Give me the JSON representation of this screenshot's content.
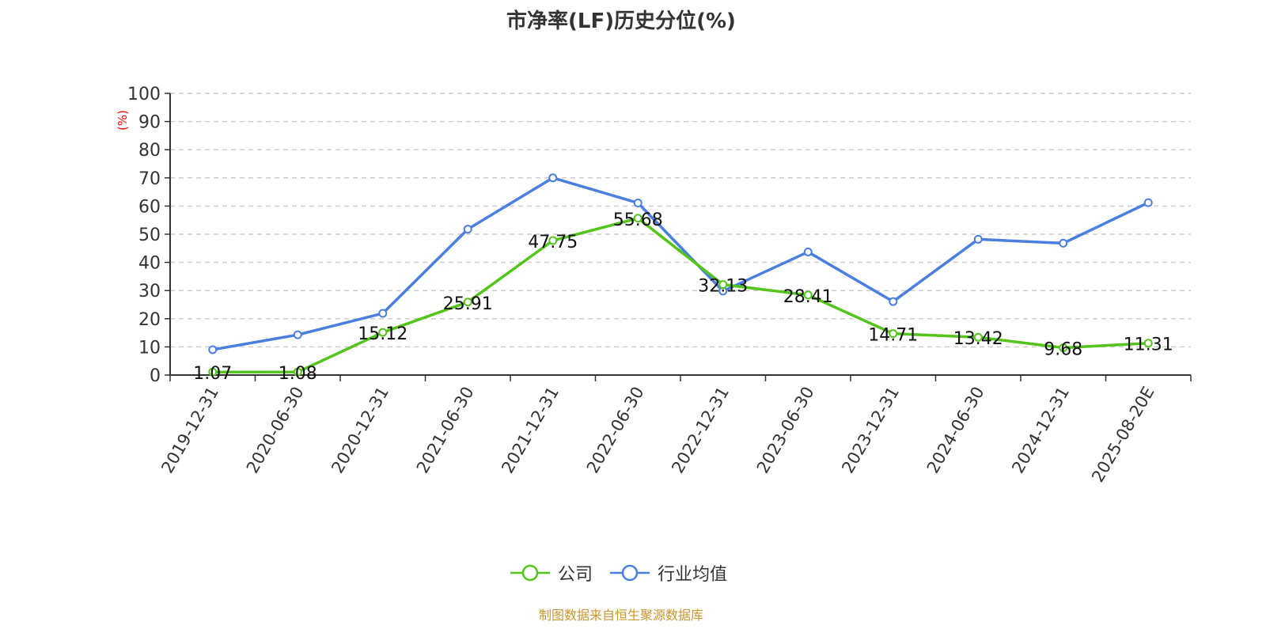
{
  "chart_data": {
    "type": "line",
    "title": "市净率(LF)历史分位(%)",
    "ylabel": "(%)",
    "ylim": [
      0,
      100
    ],
    "yticks": [
      0,
      10,
      20,
      30,
      40,
      50,
      60,
      70,
      80,
      90,
      100
    ],
    "grid": true,
    "legend_position": "bottom",
    "categories": [
      "2019-12-31",
      "2020-06-30",
      "2020-12-31",
      "2021-06-30",
      "2021-12-31",
      "2022-06-30",
      "2022-12-31",
      "2023-06-30",
      "2023-12-31",
      "2024-06-30",
      "2024-12-31",
      "2025-08-20E"
    ],
    "series": [
      {
        "name": "公司",
        "color": "#52c41a",
        "labeled": true,
        "values": [
          1.07,
          1.08,
          15.12,
          25.91,
          47.75,
          55.68,
          32.13,
          28.41,
          14.71,
          13.42,
          9.68,
          11.31
        ]
      },
      {
        "name": "行业均值",
        "color": "#4a7fe0",
        "labeled": false,
        "values": [
          9.0,
          14.3,
          21.9,
          51.8,
          70.0,
          61.1,
          29.8,
          43.7,
          26.1,
          48.2,
          46.8,
          61.2
        ]
      }
    ]
  },
  "source": "制图数据来自恒生聚源数据库"
}
